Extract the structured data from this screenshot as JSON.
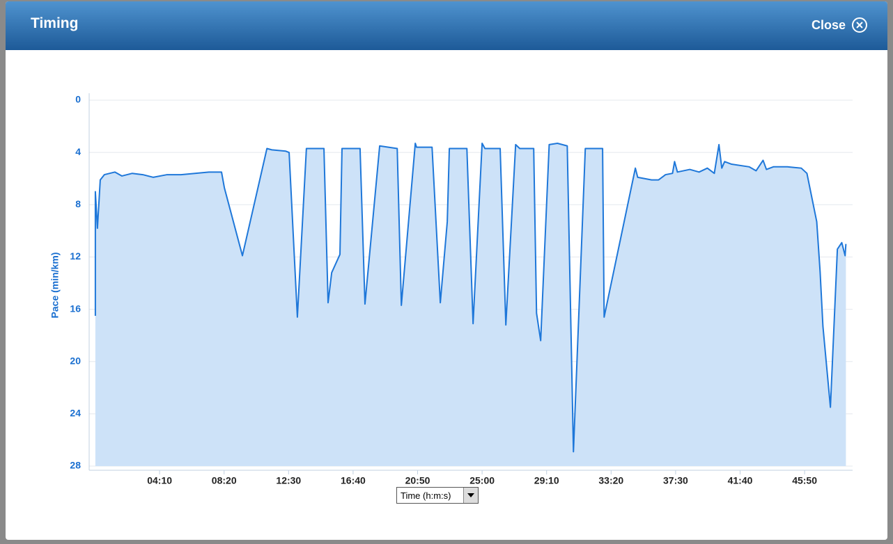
{
  "header": {
    "title": "Timing",
    "close": "Close"
  },
  "controls": {
    "x_axis_select": "Time (h:m:s)"
  },
  "chart_data": {
    "type": "area",
    "ylabel": "Pace (min/km)",
    "x": [
      1,
      1,
      9,
      20,
      36,
      77,
      104,
      144,
      185,
      225,
      279,
      333,
      387,
      441,
      490,
      501,
      571,
      666,
      685,
      739,
      752,
      784,
      819,
      887,
      903,
      917,
      949,
      957,
      1027,
      1046,
      1103,
      1171,
      1187,
      1241,
      1246,
      1306,
      1338,
      1365,
      1373,
      1441,
      1465,
      1500,
      1511,
      1570,
      1592,
      1630,
      1646,
      1700,
      1711,
      1727,
      1760,
      1792,
      1830,
      1854,
      1900,
      1967,
      1973,
      2094,
      2103,
      2157,
      2184,
      2211,
      2238,
      2246,
      2257,
      2305,
      2341,
      2373,
      2400,
      2418,
      2429,
      2440,
      2467,
      2535,
      2562,
      2589,
      2602,
      2629,
      2683,
      2737,
      2759,
      2797,
      2810,
      2821,
      2850,
      2877,
      2894,
      2907,
      2910
    ],
    "series": [
      {
        "name": "Pace",
        "color": "#1e77d9",
        "fill": "#cde2f8",
        "values": [
          16.5,
          7,
          9.8,
          6.1,
          5.7,
          5.5,
          5.8,
          5.6,
          5.7,
          5.9,
          5.7,
          5.7,
          5.6,
          5.5,
          5.5,
          6.7,
          11.9,
          3.7,
          3.8,
          3.9,
          4.0,
          16.6,
          3.7,
          3.7,
          15.5,
          13.2,
          11.8,
          3.7,
          3.7,
          15.6,
          3.5,
          3.7,
          15.7,
          3.3,
          3.6,
          3.6,
          15.5,
          9.3,
          3.7,
          3.7,
          17.1,
          3.3,
          3.7,
          3.7,
          17.2,
          3.4,
          3.7,
          3.7,
          16.3,
          18.4,
          3.4,
          3.3,
          3.5,
          26.9,
          3.7,
          3.7,
          16.6,
          5.2,
          5.9,
          6.1,
          6.1,
          5.7,
          5.6,
          4.7,
          5.5,
          5.3,
          5.5,
          5.2,
          5.6,
          3.4,
          5.2,
          4.7,
          4.9,
          5.1,
          5.4,
          4.6,
          5.3,
          5.1,
          5.1,
          5.2,
          5.6,
          9.3,
          13.1,
          17.3,
          23.5,
          11.4,
          10.9,
          11.9,
          11.0
        ]
      }
    ],
    "xlim": [
      -23,
      2936
    ],
    "xticks": [
      {
        "value": 250,
        "label": "04:10"
      },
      {
        "value": 500,
        "label": "08:20"
      },
      {
        "value": 750,
        "label": "12:30"
      },
      {
        "value": 1000,
        "label": "16:40"
      },
      {
        "value": 1250,
        "label": "20:50"
      },
      {
        "value": 1500,
        "label": "25:00"
      },
      {
        "value": 1750,
        "label": "29:10"
      },
      {
        "value": 2000,
        "label": "33:20"
      },
      {
        "value": 2250,
        "label": "37:30"
      },
      {
        "value": 2500,
        "label": "41:40"
      },
      {
        "value": 2750,
        "label": "45:50"
      }
    ],
    "ylim": [
      0,
      28
    ],
    "y_inverted": true,
    "yticks": [
      0,
      4,
      8,
      12,
      16,
      20,
      24,
      28
    ],
    "grid": true
  }
}
